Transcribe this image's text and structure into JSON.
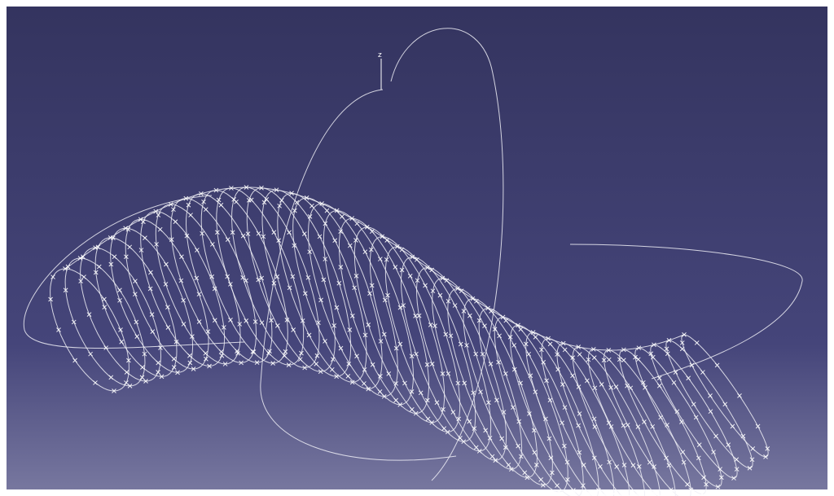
{
  "viewport": {
    "axis_labels": [
      "z"
    ]
  }
}
